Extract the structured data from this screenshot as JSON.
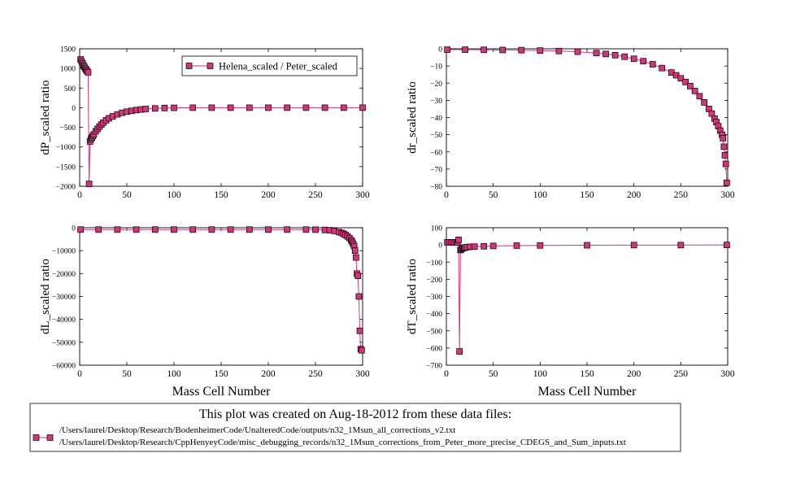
{
  "colors": {
    "marker_fill": "#d6337a",
    "marker_edge": "#000000",
    "line": "#d6337a"
  },
  "legend": {
    "label": "Helena_scaled / Peter_scaled"
  },
  "footer": {
    "title": "This plot was created on Aug-18-2012 from these data files:",
    "files": [
      "/Users/laurel/Desktop/Research/BodenheimerCode/UnalteredCode/outputs/n32_1Msun_all_corrections_v2.txt",
      "/Users/laurel/Desktop/Research/CppHenyeyCode/misc_debugging_records/n32_1Msun_corrections_from_Peter_more_precise_CDEGS_and_Sum_inputs.txt"
    ]
  },
  "chart_data": [
    {
      "id": "dP",
      "type": "line",
      "ylabel": "dP_scaled ratio",
      "xlabel": "",
      "xlim": [
        0,
        300
      ],
      "ylim": [
        -2000,
        1500
      ],
      "xticks": [
        0,
        50,
        100,
        150,
        200,
        250,
        300
      ],
      "yticks": [
        1500,
        1000,
        500,
        0,
        -500,
        -1000,
        -1500,
        -2000
      ],
      "legend": true,
      "series": [
        {
          "name": "Helena_scaled / Peter_scaled",
          "x": [
            1,
            2,
            3,
            4,
            5,
            6,
            7,
            8,
            9,
            10,
            11,
            12,
            13,
            14,
            15,
            17,
            19,
            21,
            23,
            25,
            28,
            31,
            35,
            40,
            45,
            50,
            55,
            60,
            65,
            70,
            80,
            90,
            100,
            120,
            140,
            160,
            180,
            200,
            220,
            240,
            260,
            280,
            300
          ],
          "y": [
            1230,
            1180,
            1130,
            1080,
            1040,
            1000,
            960,
            930,
            900,
            -1940,
            -860,
            -800,
            -760,
            -720,
            -680,
            -600,
            -540,
            -480,
            -430,
            -380,
            -320,
            -270,
            -220,
            -170,
            -130,
            -100,
            -80,
            -60,
            -45,
            -32,
            -18,
            -8,
            -3,
            0,
            0,
            0,
            0,
            0,
            0,
            0,
            0,
            0,
            0
          ]
        }
      ]
    },
    {
      "id": "dr",
      "type": "line",
      "ylabel": "dr_scaled ratio",
      "xlabel": "",
      "xlim": [
        0,
        300
      ],
      "ylim": [
        -80,
        0
      ],
      "xticks": [
        0,
        50,
        100,
        150,
        200,
        250,
        300
      ],
      "yticks": [
        0,
        -10,
        -20,
        -30,
        -40,
        -50,
        -60,
        -70,
        -80
      ],
      "legend": false,
      "series": [
        {
          "name": "Helena_scaled / Peter_scaled",
          "x": [
            1,
            20,
            40,
            60,
            80,
            100,
            120,
            140,
            160,
            170,
            180,
            190,
            200,
            210,
            220,
            230,
            240,
            245,
            250,
            255,
            260,
            265,
            270,
            275,
            280,
            283,
            286,
            288,
            290,
            292,
            294,
            295,
            296,
            297,
            298,
            299
          ],
          "y": [
            -0.5,
            -0.5,
            -0.6,
            -0.7,
            -0.8,
            -1.0,
            -1.3,
            -1.7,
            -2.5,
            -3.0,
            -3.7,
            -4.6,
            -5.8,
            -7.2,
            -9.0,
            -11.2,
            -13.8,
            -15.4,
            -17.2,
            -19.3,
            -21.7,
            -24.5,
            -27.6,
            -31.2,
            -35.0,
            -37.7,
            -40.6,
            -42.7,
            -45.0,
            -47.6,
            -50.0,
            -52.0,
            -57.0,
            -62.0,
            -67.0,
            -78.0
          ]
        }
      ]
    },
    {
      "id": "dL",
      "type": "line",
      "ylabel": "dL_scaled ratio",
      "xlabel": "Mass Cell Number",
      "xlim": [
        0,
        300
      ],
      "ylim": [
        -60000,
        0
      ],
      "xticks": [
        0,
        50,
        100,
        150,
        200,
        250,
        300
      ],
      "yticks": [
        0,
        -10000,
        -20000,
        -30000,
        -40000,
        -50000,
        -60000
      ],
      "ytick_labels": [
        "0",
        "−10000",
        "−20000",
        "−30000",
        "−40000",
        "−50000",
        "−60000"
      ],
      "legend": false,
      "series": [
        {
          "name": "Helena_scaled / Peter_scaled",
          "x": [
            1,
            20,
            40,
            60,
            80,
            100,
            120,
            140,
            160,
            180,
            200,
            220,
            240,
            250,
            260,
            265,
            270,
            275,
            278,
            280,
            282,
            284,
            286,
            288,
            289,
            290,
            291,
            292,
            293,
            294,
            295,
            296,
            297,
            298,
            299
          ],
          "y": [
            -800,
            -800,
            -800,
            -800,
            -800,
            -800,
            -800,
            -800,
            -800,
            -800,
            -800,
            -800,
            -800,
            -850,
            -950,
            -1100,
            -1400,
            -1900,
            -2300,
            -2700,
            -3200,
            -3800,
            -4500,
            -5500,
            -6200,
            -7000,
            -8000,
            -10000,
            -13000,
            -20000,
            -21000,
            -30000,
            -45000,
            -53000,
            -53500
          ]
        }
      ]
    },
    {
      "id": "dT",
      "type": "line",
      "ylabel": "dT_scaled ratio",
      "xlabel": "Mass Cell Number",
      "xlim": [
        0,
        300
      ],
      "ylim": [
        -700,
        100
      ],
      "xticks": [
        0,
        50,
        100,
        150,
        200,
        250,
        300
      ],
      "yticks": [
        100,
        0,
        -100,
        -200,
        -300,
        -400,
        -500,
        -600,
        -700
      ],
      "ytick_labels": [
        "100",
        "0",
        "−100",
        "−200",
        "−300",
        "−400",
        "−500",
        "−600",
        "−700"
      ],
      "legend": false,
      "series": [
        {
          "name": "Helena_scaled / Peter_scaled",
          "x": [
            1,
            3,
            5,
            7,
            9,
            11,
            12,
            13,
            14,
            15,
            16,
            17,
            18,
            19,
            20,
            22,
            25,
            30,
            40,
            50,
            75,
            100,
            150,
            200,
            250,
            299
          ],
          "y": [
            15,
            15,
            15,
            15,
            14,
            14,
            14,
            30,
            -620,
            -30,
            -25,
            -20,
            -18,
            -16,
            -15,
            -13,
            -11,
            -10,
            -8,
            -6,
            -4,
            -3,
            -2,
            -1,
            -1,
            0
          ]
        }
      ]
    }
  ]
}
